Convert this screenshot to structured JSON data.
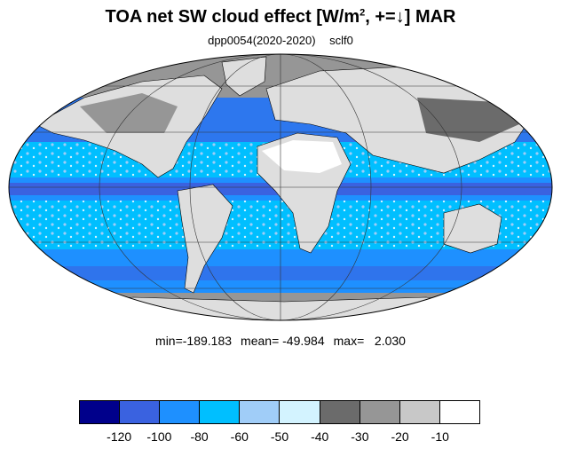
{
  "title": {
    "main": "TOA net SW cloud effect [W/m",
    "sup": "2",
    "tail": ", +=↓]  MAR"
  },
  "subtitle": {
    "experiment": "dpp0054(2020-2020)",
    "variable": "sclf0"
  },
  "stats": {
    "min": "min=-189.183",
    "mean": "mean= -49.984",
    "max": "max=   2.030"
  },
  "colorbar": {
    "colors": [
      "#00008b",
      "#3a62e0",
      "#1e90ff",
      "#00bfff",
      "#a0cdf8",
      "#d3f3ff",
      "#6b6b6b",
      "#969696",
      "#c8c8c8",
      "#ffffff"
    ],
    "tick_labels": [
      "-120",
      "-100",
      "-80",
      "-60",
      "-50",
      "-40",
      "-30",
      "-20",
      "-10"
    ]
  },
  "map": {
    "projection": "mollweide",
    "ocean_color": "#1e90ff",
    "land_color": "#dedede"
  }
}
